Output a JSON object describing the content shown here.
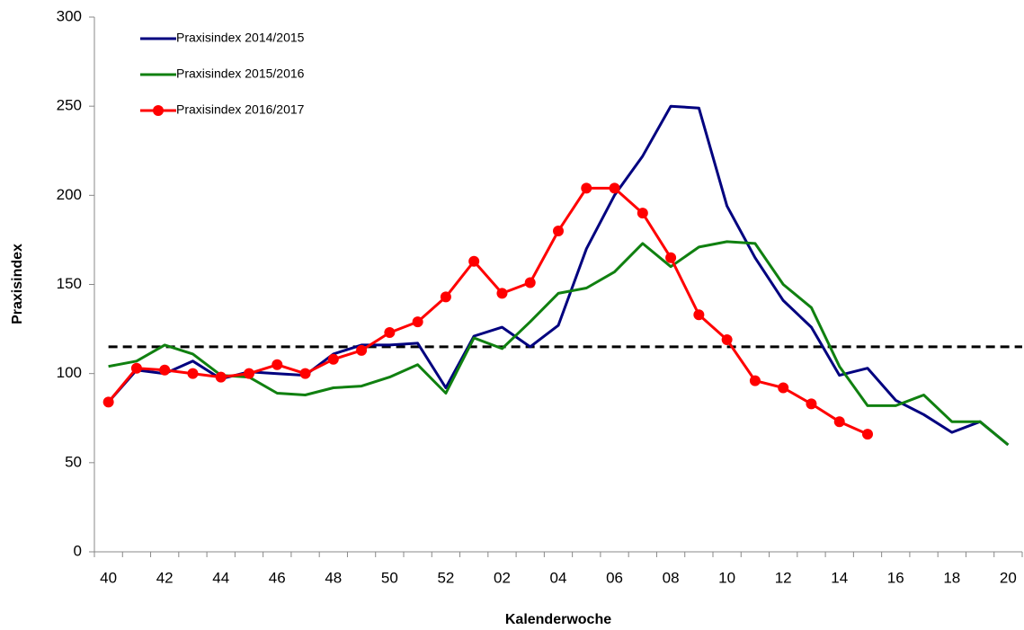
{
  "chart_data": {
    "type": "line",
    "xlabel": "Kalenderwoche",
    "ylabel": "Praxisindex",
    "categories": [
      "40",
      null,
      "42",
      null,
      "44",
      null,
      "46",
      null,
      "48",
      null,
      "50",
      null,
      "52",
      null,
      "02",
      null,
      "04",
      null,
      "06",
      null,
      "08",
      null,
      "10",
      null,
      "12",
      null,
      "14",
      null,
      "16",
      null,
      "18",
      null,
      "20"
    ],
    "ylim": [
      0,
      300
    ],
    "yticks": [
      0,
      50,
      100,
      150,
      200,
      250,
      300
    ],
    "reference_line": 115,
    "legend": "upper left",
    "series": [
      {
        "name": "Praxisindex 2014/2015",
        "color": "#00007f",
        "marker": "none",
        "values": [
          84,
          102,
          100,
          107,
          97,
          101,
          100,
          99,
          111,
          116,
          116,
          117,
          92,
          121,
          126,
          115,
          127,
          170,
          200,
          222,
          250,
          249,
          194,
          165,
          141,
          126,
          99,
          103,
          85,
          77,
          67,
          73,
          60
        ]
      },
      {
        "name": "Praxisindex 2015/2016",
        "color": "#108010",
        "marker": "none",
        "values": [
          104,
          107,
          116,
          111,
          99,
          98,
          89,
          88,
          92,
          93,
          98,
          105,
          89,
          120,
          114,
          129,
          145,
          148,
          157,
          173,
          160,
          171,
          174,
          173,
          150,
          137,
          104,
          82,
          82,
          88,
          73,
          73,
          60
        ]
      },
      {
        "name": "Praxisindex 2016/2017",
        "color": "#ff0000",
        "marker": "circle",
        "values": [
          84,
          103,
          102,
          100,
          98,
          100,
          105,
          100,
          108,
          113,
          123,
          129,
          143,
          163,
          145,
          151,
          180,
          204,
          204,
          190,
          165,
          133,
          119,
          96,
          92,
          83,
          73,
          66,
          null,
          null,
          null,
          null,
          null
        ]
      }
    ]
  }
}
